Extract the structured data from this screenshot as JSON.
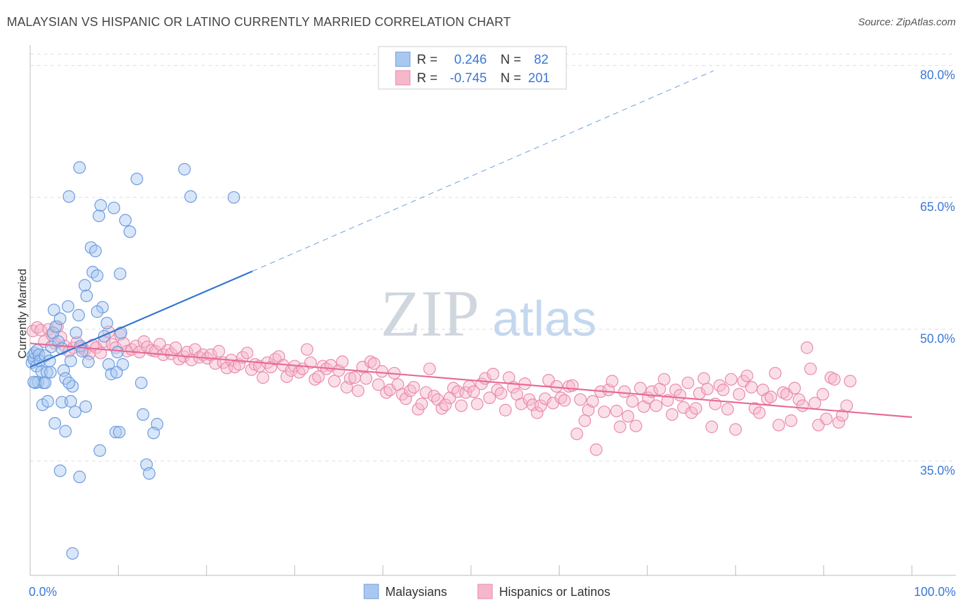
{
  "title": "MALAYSIAN VS HISPANIC OR LATINO CURRENTLY MARRIED CORRELATION CHART",
  "source": "Source: ZipAtlas.com",
  "watermark": {
    "zip": "ZIP",
    "atlas": "atlas"
  },
  "colors": {
    "blue_fill": "#a9c8f0",
    "blue_stroke": "#6a9be0",
    "blue_line": "#2f74d0",
    "pink_fill": "#f6b7cb",
    "pink_stroke": "#e88aaa",
    "pink_line": "#e76a95",
    "axis_text": "#3a78d4",
    "grid": "#dddddd"
  },
  "legend_top": [
    {
      "r_label": "R =",
      "r_value": "0.246",
      "n_label": "N =",
      "n_value": "82"
    },
    {
      "r_label": "R =",
      "r_value": "-0.745",
      "n_label": "N =",
      "n_value": "201"
    }
  ],
  "chart_data": {
    "type": "scatter",
    "title": "MALAYSIAN VS HISPANIC OR LATINO CURRENTLY MARRIED CORRELATION CHART",
    "xlabel": "",
    "ylabel": "Currently Married",
    "xlim": [
      0,
      100
    ],
    "ylim": [
      22,
      82
    ],
    "x_tick_labels": [
      "0.0%",
      "100.0%"
    ],
    "y_ticks": [
      35,
      50,
      65,
      80
    ],
    "y_tick_labels": [
      "35.0%",
      "50.0%",
      "65.0%",
      "80.0%"
    ],
    "grid": true,
    "legend_position": "bottom-center",
    "series": [
      {
        "name": "Malaysians",
        "r": 0.246,
        "n": 82,
        "trend": {
          "x0": 0,
          "y0": 45.7,
          "x1": 25.2,
          "y1": 56.6,
          "extended_to_x": 77.5,
          "extended_y": 79.4
        },
        "points": [
          [
            0.2,
            46.2
          ],
          [
            0.3,
            47.0
          ],
          [
            0.4,
            46.6
          ],
          [
            0.5,
            47.3
          ],
          [
            0.7,
            45.8
          ],
          [
            0.8,
            47.6
          ],
          [
            1.0,
            47.1
          ],
          [
            1.1,
            46.4
          ],
          [
            0.9,
            44.0
          ],
          [
            1.3,
            45.2
          ],
          [
            1.5,
            43.9
          ],
          [
            1.7,
            47.0
          ],
          [
            1.9,
            45.1
          ],
          [
            2.2,
            46.4
          ],
          [
            2.4,
            48.0
          ],
          [
            2.6,
            49.6
          ],
          [
            2.7,
            52.2
          ],
          [
            2.9,
            50.3
          ],
          [
            3.2,
            48.6
          ],
          [
            3.4,
            51.2
          ],
          [
            3.6,
            47.8
          ],
          [
            3.8,
            45.3
          ],
          [
            4.0,
            44.4
          ],
          [
            4.3,
            52.6
          ],
          [
            4.6,
            46.4
          ],
          [
            4.8,
            43.5
          ],
          [
            5.2,
            49.6
          ],
          [
            5.5,
            51.6
          ],
          [
            5.7,
            48.1
          ],
          [
            5.9,
            47.5
          ],
          [
            6.2,
            55.0
          ],
          [
            6.4,
            53.8
          ],
          [
            6.6,
            46.3
          ],
          [
            6.9,
            59.3
          ],
          [
            7.1,
            56.5
          ],
          [
            7.4,
            58.9
          ],
          [
            7.6,
            56.1
          ],
          [
            7.8,
            62.9
          ],
          [
            8.0,
            64.1
          ],
          [
            8.2,
            52.5
          ],
          [
            8.4,
            49.2
          ],
          [
            8.7,
            50.7
          ],
          [
            8.9,
            46.0
          ],
          [
            9.2,
            44.9
          ],
          [
            9.5,
            63.8
          ],
          [
            9.9,
            47.4
          ],
          [
            10.3,
            49.6
          ],
          [
            10.5,
            46.0
          ],
          [
            10.8,
            62.4
          ],
          [
            11.3,
            61.1
          ],
          [
            12.1,
            67.1
          ],
          [
            12.6,
            43.9
          ],
          [
            12.8,
            40.3
          ],
          [
            13.2,
            34.6
          ],
          [
            14.4,
            39.2
          ],
          [
            9.7,
            38.3
          ],
          [
            10.1,
            38.3
          ],
          [
            6.3,
            41.2
          ],
          [
            7.9,
            36.2
          ],
          [
            5.6,
            33.2
          ],
          [
            3.4,
            33.9
          ],
          [
            1.4,
            41.4
          ],
          [
            2.0,
            41.8
          ],
          [
            2.8,
            39.3
          ],
          [
            3.6,
            41.7
          ],
          [
            4.0,
            38.4
          ],
          [
            4.6,
            41.8
          ],
          [
            5.1,
            40.6
          ],
          [
            0.6,
            43.9
          ],
          [
            1.7,
            43.9
          ],
          [
            2.3,
            45.1
          ],
          [
            4.4,
            43.9
          ],
          [
            7.6,
            52.0
          ],
          [
            13.5,
            33.6
          ],
          [
            14.0,
            38.2
          ],
          [
            17.5,
            68.2
          ],
          [
            18.2,
            65.1
          ],
          [
            23.1,
            65.0
          ],
          [
            5.6,
            68.4
          ],
          [
            4.4,
            65.1
          ],
          [
            10.2,
            56.3
          ],
          [
            4.8,
            24.5
          ],
          [
            9.8,
            45.1
          ],
          [
            0.4,
            44.0
          ]
        ]
      },
      {
        "name": "Hispanics or Latinos",
        "r": -0.745,
        "n": 201,
        "trend": {
          "x0": 0,
          "y0": 48.4,
          "x1": 100,
          "y1": 40.0
        },
        "points": [
          [
            0.3,
            49.8
          ],
          [
            0.8,
            50.2
          ],
          [
            1.2,
            49.9
          ],
          [
            1.6,
            48.6
          ],
          [
            2.1,
            50.0
          ],
          [
            2.5,
            49.3
          ],
          [
            2.8,
            48.4
          ],
          [
            3.1,
            50.3
          ],
          [
            3.5,
            49.1
          ],
          [
            3.9,
            48.1
          ],
          [
            4.4,
            47.5
          ],
          [
            4.9,
            47.9
          ],
          [
            5.3,
            48.5
          ],
          [
            5.8,
            47.9
          ],
          [
            6.2,
            47.6
          ],
          [
            6.7,
            47.2
          ],
          [
            7.1,
            48.2
          ],
          [
            7.5,
            47.9
          ],
          [
            8.0,
            47.3
          ],
          [
            8.4,
            48.6
          ],
          [
            8.9,
            49.7
          ],
          [
            9.3,
            48.3
          ],
          [
            9.7,
            47.9
          ],
          [
            10.2,
            49.4
          ],
          [
            10.6,
            48.4
          ],
          [
            11.0,
            47.5
          ],
          [
            11.5,
            47.7
          ],
          [
            12.0,
            48.1
          ],
          [
            12.4,
            47.4
          ],
          [
            12.9,
            48.6
          ],
          [
            13.3,
            48.0
          ],
          [
            13.8,
            47.6
          ],
          [
            14.2,
            47.5
          ],
          [
            14.7,
            48.3
          ],
          [
            15.1,
            47.1
          ],
          [
            15.6,
            47.6
          ],
          [
            16.0,
            47.2
          ],
          [
            16.5,
            47.9
          ],
          [
            16.9,
            46.6
          ],
          [
            17.4,
            46.9
          ],
          [
            17.8,
            47.4
          ],
          [
            18.3,
            46.5
          ],
          [
            18.7,
            47.7
          ],
          [
            19.2,
            46.8
          ],
          [
            19.6,
            47.1
          ],
          [
            20.1,
            46.7
          ],
          [
            20.5,
            47.1
          ],
          [
            21.0,
            46.1
          ],
          [
            21.4,
            47.5
          ],
          [
            21.9,
            46.2
          ],
          [
            22.3,
            45.6
          ],
          [
            22.8,
            46.5
          ],
          [
            23.2,
            45.7
          ],
          [
            23.7,
            46.0
          ],
          [
            24.1,
            46.8
          ],
          [
            24.6,
            47.3
          ],
          [
            25.1,
            45.4
          ],
          [
            25.5,
            46.0
          ],
          [
            26.0,
            45.8
          ],
          [
            26.4,
            44.5
          ],
          [
            26.9,
            46.2
          ],
          [
            27.3,
            45.7
          ],
          [
            27.8,
            46.6
          ],
          [
            28.2,
            46.9
          ],
          [
            28.7,
            45.9
          ],
          [
            29.1,
            44.6
          ],
          [
            29.6,
            45.3
          ],
          [
            30.0,
            45.8
          ],
          [
            30.5,
            45.1
          ],
          [
            30.9,
            45.5
          ],
          [
            31.4,
            47.7
          ],
          [
            31.8,
            46.2
          ],
          [
            32.3,
            44.3
          ],
          [
            32.7,
            44.6
          ],
          [
            33.2,
            45.8
          ],
          [
            33.6,
            45.5
          ],
          [
            34.1,
            45.9
          ],
          [
            34.5,
            44.1
          ],
          [
            35.0,
            45.3
          ],
          [
            35.4,
            46.3
          ],
          [
            35.9,
            43.4
          ],
          [
            36.3,
            44.4
          ],
          [
            36.8,
            44.5
          ],
          [
            37.2,
            43.0
          ],
          [
            37.7,
            45.7
          ],
          [
            38.1,
            44.4
          ],
          [
            38.6,
            46.3
          ],
          [
            39.0,
            46.1
          ],
          [
            39.5,
            43.7
          ],
          [
            39.9,
            45.2
          ],
          [
            40.4,
            42.8
          ],
          [
            40.8,
            43.1
          ],
          [
            41.3,
            45.0
          ],
          [
            41.7,
            43.7
          ],
          [
            42.2,
            42.6
          ],
          [
            42.6,
            42.1
          ],
          [
            43.1,
            43.0
          ],
          [
            43.5,
            43.4
          ],
          [
            44.0,
            40.9
          ],
          [
            44.4,
            41.5
          ],
          [
            44.9,
            42.8
          ],
          [
            45.3,
            45.5
          ],
          [
            45.8,
            42.4
          ],
          [
            46.2,
            42.0
          ],
          [
            46.7,
            41.0
          ],
          [
            47.1,
            41.4
          ],
          [
            47.6,
            42.2
          ],
          [
            48.0,
            43.3
          ],
          [
            48.5,
            42.9
          ],
          [
            48.9,
            41.3
          ],
          [
            49.4,
            42.8
          ],
          [
            49.8,
            43.5
          ],
          [
            50.3,
            42.9
          ],
          [
            50.7,
            41.5
          ],
          [
            51.2,
            43.8
          ],
          [
            51.6,
            44.4
          ],
          [
            52.1,
            42.2
          ],
          [
            52.5,
            44.9
          ],
          [
            53.0,
            43.1
          ],
          [
            53.4,
            42.7
          ],
          [
            53.9,
            40.8
          ],
          [
            54.3,
            44.5
          ],
          [
            54.8,
            43.4
          ],
          [
            55.2,
            42.6
          ],
          [
            55.7,
            41.5
          ],
          [
            56.1,
            43.8
          ],
          [
            56.6,
            42.0
          ],
          [
            57.0,
            41.4
          ],
          [
            57.5,
            40.5
          ],
          [
            57.9,
            41.3
          ],
          [
            58.4,
            42.1
          ],
          [
            58.8,
            44.2
          ],
          [
            59.3,
            41.6
          ],
          [
            59.7,
            43.5
          ],
          [
            60.2,
            42.2
          ],
          [
            60.6,
            41.9
          ],
          [
            61.1,
            43.5
          ],
          [
            61.5,
            43.6
          ],
          [
            62.0,
            38.1
          ],
          [
            62.4,
            42.0
          ],
          [
            62.9,
            39.6
          ],
          [
            63.3,
            40.8
          ],
          [
            63.8,
            41.8
          ],
          [
            64.2,
            36.3
          ],
          [
            64.7,
            42.9
          ],
          [
            65.1,
            40.6
          ],
          [
            65.6,
            43.1
          ],
          [
            66.0,
            44.1
          ],
          [
            66.5,
            40.7
          ],
          [
            66.9,
            38.9
          ],
          [
            67.4,
            42.9
          ],
          [
            67.8,
            40.1
          ],
          [
            68.3,
            41.8
          ],
          [
            68.7,
            39.0
          ],
          [
            69.2,
            43.3
          ],
          [
            69.6,
            41.2
          ],
          [
            70.1,
            42.2
          ],
          [
            70.5,
            42.9
          ],
          [
            71.0,
            41.3
          ],
          [
            71.4,
            43.2
          ],
          [
            71.9,
            44.3
          ],
          [
            72.3,
            41.9
          ],
          [
            72.8,
            40.3
          ],
          [
            73.2,
            43.1
          ],
          [
            73.7,
            42.5
          ],
          [
            74.1,
            41.1
          ],
          [
            74.6,
            43.9
          ],
          [
            75.0,
            40.5
          ],
          [
            75.5,
            41.0
          ],
          [
            75.9,
            42.7
          ],
          [
            76.4,
            44.4
          ],
          [
            76.8,
            43.2
          ],
          [
            77.3,
            38.9
          ],
          [
            77.7,
            41.5
          ],
          [
            78.2,
            43.6
          ],
          [
            78.6,
            43.1
          ],
          [
            79.1,
            40.9
          ],
          [
            79.5,
            44.3
          ],
          [
            80.0,
            38.6
          ],
          [
            80.4,
            42.6
          ],
          [
            80.9,
            44.1
          ],
          [
            81.3,
            44.7
          ],
          [
            81.8,
            43.4
          ],
          [
            82.2,
            41.0
          ],
          [
            82.7,
            40.5
          ],
          [
            83.1,
            43.1
          ],
          [
            83.6,
            42.1
          ],
          [
            84.0,
            42.3
          ],
          [
            84.5,
            45.0
          ],
          [
            84.9,
            39.1
          ],
          [
            85.4,
            42.8
          ],
          [
            85.8,
            42.6
          ],
          [
            86.3,
            39.6
          ],
          [
            86.7,
            43.3
          ],
          [
            87.2,
            42.0
          ],
          [
            87.6,
            41.3
          ],
          [
            88.1,
            47.9
          ],
          [
            88.5,
            45.5
          ],
          [
            89.0,
            41.6
          ],
          [
            89.4,
            39.1
          ],
          [
            89.9,
            42.6
          ],
          [
            90.3,
            39.8
          ],
          [
            90.8,
            44.5
          ],
          [
            91.2,
            44.3
          ],
          [
            91.7,
            39.4
          ],
          [
            92.1,
            40.2
          ],
          [
            92.6,
            41.3
          ],
          [
            93.0,
            44.1
          ]
        ]
      }
    ]
  },
  "legend_bottom": [
    "Malaysians",
    "Hispanics or Latinos"
  ],
  "x_axis": {
    "left_label": "0.0%",
    "right_label": "100.0%"
  }
}
